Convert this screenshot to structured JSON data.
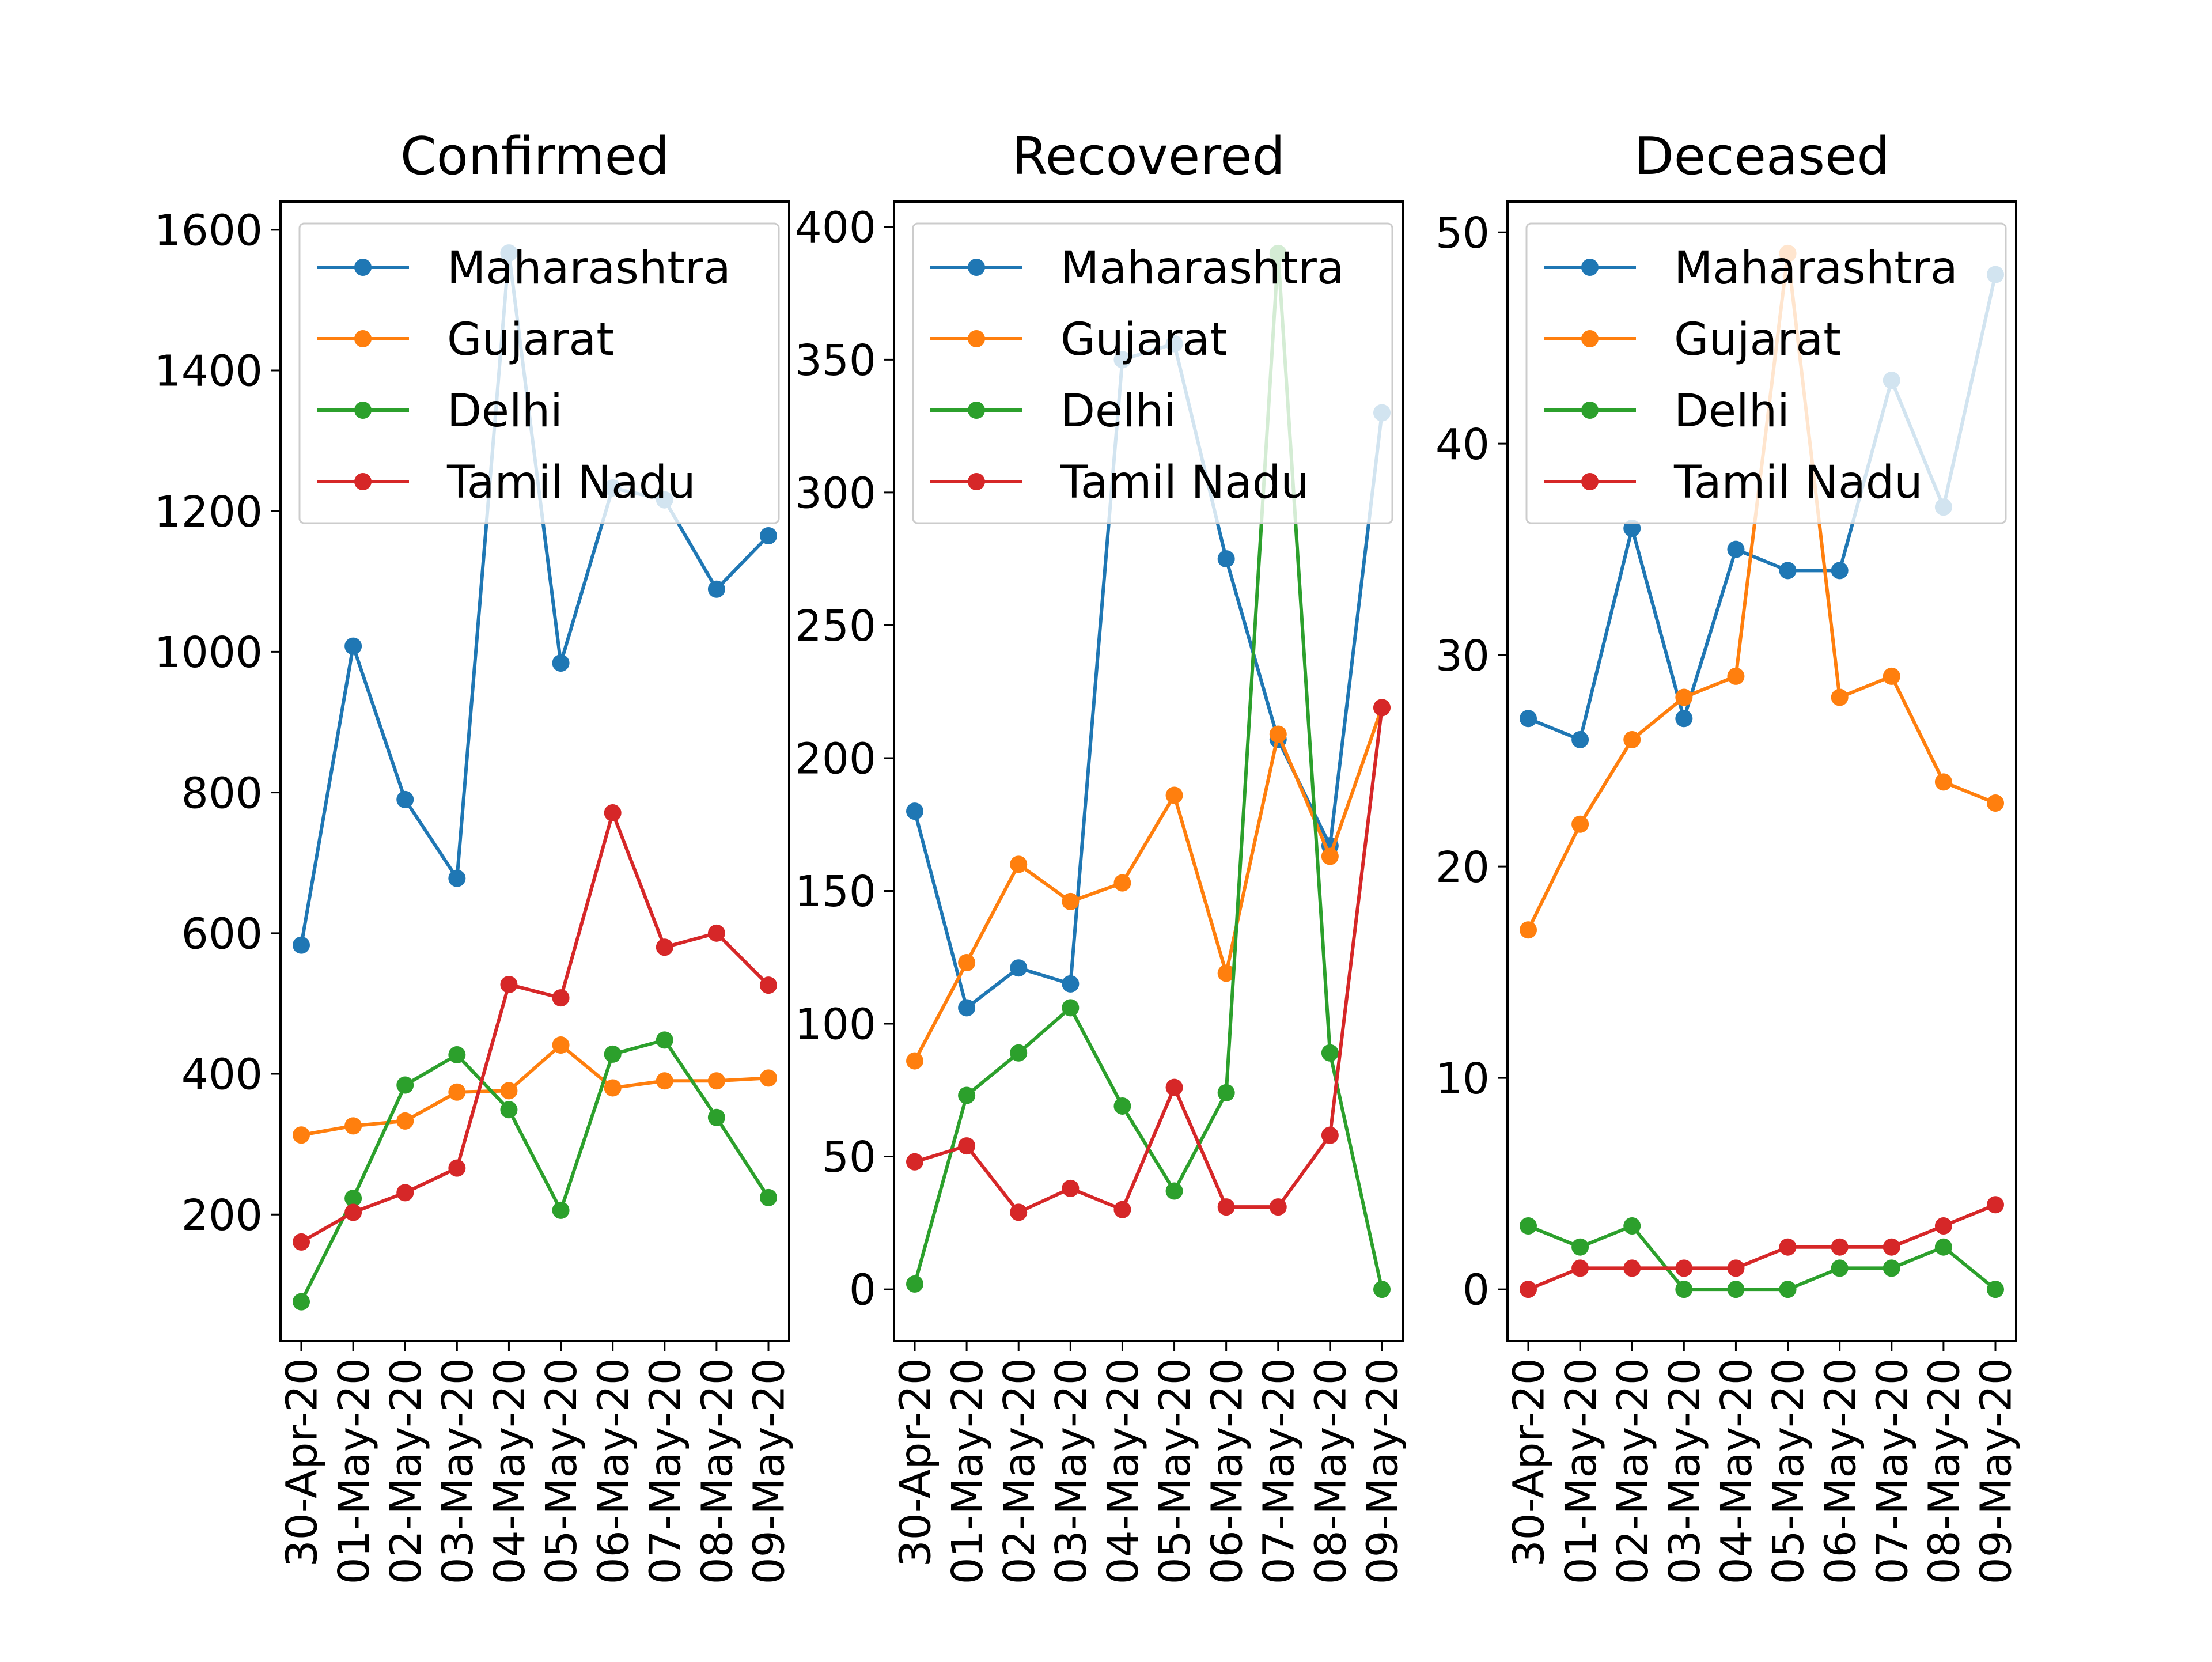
{
  "chart_data": [
    {
      "type": "line",
      "title": "Confirmed",
      "x": [
        "30-Apr-20",
        "01-May-20",
        "02-May-20",
        "03-May-20",
        "04-May-20",
        "05-May-20",
        "06-May-20",
        "07-May-20",
        "08-May-20",
        "09-May-20"
      ],
      "ylim": [
        20,
        1640
      ],
      "yticks": [
        200,
        400,
        600,
        800,
        1000,
        1200,
        1400,
        1600
      ],
      "legend": "top-right",
      "series": [
        {
          "name": "Maharashtra",
          "color": "#1f77b4",
          "values": [
            583,
            1008,
            790,
            678,
            1567,
            984,
            1233,
            1216,
            1089,
            1165
          ]
        },
        {
          "name": "Gujarat",
          "color": "#ff7f0e",
          "values": [
            313,
            326,
            333,
            374,
            376,
            441,
            380,
            390,
            390,
            394
          ]
        },
        {
          "name": "Delhi",
          "color": "#2ca02c",
          "values": [
            76,
            223,
            384,
            427,
            349,
            206,
            428,
            448,
            338,
            224
          ]
        },
        {
          "name": "Tamil Nadu",
          "color": "#d62728",
          "values": [
            161,
            203,
            231,
            266,
            527,
            508,
            771,
            580,
            600,
            526
          ]
        }
      ]
    },
    {
      "type": "line",
      "title": "Recovered",
      "x": [
        "30-Apr-20",
        "01-May-20",
        "02-May-20",
        "03-May-20",
        "04-May-20",
        "05-May-20",
        "06-May-20",
        "07-May-20",
        "08-May-20",
        "09-May-20"
      ],
      "ylim": [
        -19.5,
        409.5
      ],
      "yticks": [
        0,
        50,
        100,
        150,
        200,
        250,
        300,
        350,
        400
      ],
      "legend": "top-right",
      "series": [
        {
          "name": "Maharashtra",
          "color": "#1f77b4",
          "values": [
            180,
            106,
            121,
            115,
            350,
            356,
            275,
            207,
            167,
            330
          ]
        },
        {
          "name": "Gujarat",
          "color": "#ff7f0e",
          "values": [
            86,
            123,
            160,
            146,
            153,
            186,
            119,
            209,
            163,
            219
          ]
        },
        {
          "name": "Delhi",
          "color": "#2ca02c",
          "values": [
            2,
            73,
            89,
            106,
            69,
            37,
            74,
            390,
            89,
            0
          ]
        },
        {
          "name": "Tamil Nadu",
          "color": "#d62728",
          "values": [
            48,
            54,
            29,
            38,
            30,
            76,
            31,
            31,
            58,
            219
          ]
        }
      ]
    },
    {
      "type": "line",
      "title": "Deceased",
      "x": [
        "30-Apr-20",
        "01-May-20",
        "02-May-20",
        "03-May-20",
        "04-May-20",
        "05-May-20",
        "06-May-20",
        "07-May-20",
        "08-May-20",
        "09-May-20"
      ],
      "ylim": [
        -2.45,
        51.45
      ],
      "yticks": [
        0,
        10,
        20,
        30,
        40,
        50
      ],
      "legend": "top-right",
      "series": [
        {
          "name": "Maharashtra",
          "color": "#1f77b4",
          "values": [
            27,
            26,
            36,
            27,
            35,
            34,
            34,
            43,
            37,
            48
          ]
        },
        {
          "name": "Gujarat",
          "color": "#ff7f0e",
          "values": [
            17,
            22,
            26,
            28,
            29,
            49,
            28,
            29,
            24,
            23
          ]
        },
        {
          "name": "Delhi",
          "color": "#2ca02c",
          "values": [
            3,
            2,
            3,
            0,
            0,
            0,
            1,
            1,
            2,
            0
          ]
        },
        {
          "name": "Tamil Nadu",
          "color": "#d62728",
          "values": [
            0,
            1,
            1,
            1,
            1,
            2,
            2,
            2,
            3,
            4
          ]
        }
      ]
    }
  ]
}
